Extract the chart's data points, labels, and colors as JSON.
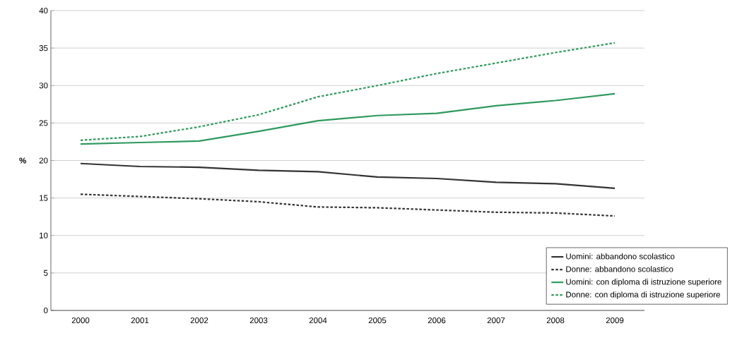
{
  "chart_data": {
    "type": "line",
    "ylabel": "%",
    "categories": [
      "2000",
      "2001",
      "2002",
      "2003",
      "2004",
      "2005",
      "2006",
      "2007",
      "2008",
      "2009"
    ],
    "series": [
      {
        "name": "Uomini: abbandono scolastico",
        "color": "#333333",
        "line_style": "solid",
        "values": [
          19.6,
          19.2,
          19.1,
          18.7,
          18.5,
          17.8,
          17.6,
          17.1,
          16.9,
          16.3
        ]
      },
      {
        "name": "Donne: abbandono scolastico",
        "color": "#333333",
        "line_style": "dashed",
        "values": [
          15.5,
          15.2,
          14.9,
          14.5,
          13.8,
          13.7,
          13.4,
          13.1,
          13.0,
          12.6
        ]
      },
      {
        "name": "Uomini: con diploma di istruzione superiore",
        "color": "#2e9a5e",
        "line_style": "solid",
        "values": [
          22.2,
          22.4,
          22.6,
          23.9,
          25.3,
          26.0,
          26.3,
          27.3,
          28.0,
          28.9
        ]
      },
      {
        "name": "Donne: con diploma di istruzione superiore",
        "color": "#2e9a5e",
        "line_style": "dashed",
        "values": [
          22.7,
          23.2,
          24.5,
          26.1,
          28.5,
          30.0,
          31.6,
          33.0,
          34.4,
          35.7
        ]
      }
    ],
    "ylim": [
      0,
      40
    ],
    "yticks": [
      0,
      5,
      10,
      15,
      20,
      25,
      30,
      35,
      40
    ],
    "grid": "y",
    "legend": "bottom right",
    "marker": "none"
  }
}
